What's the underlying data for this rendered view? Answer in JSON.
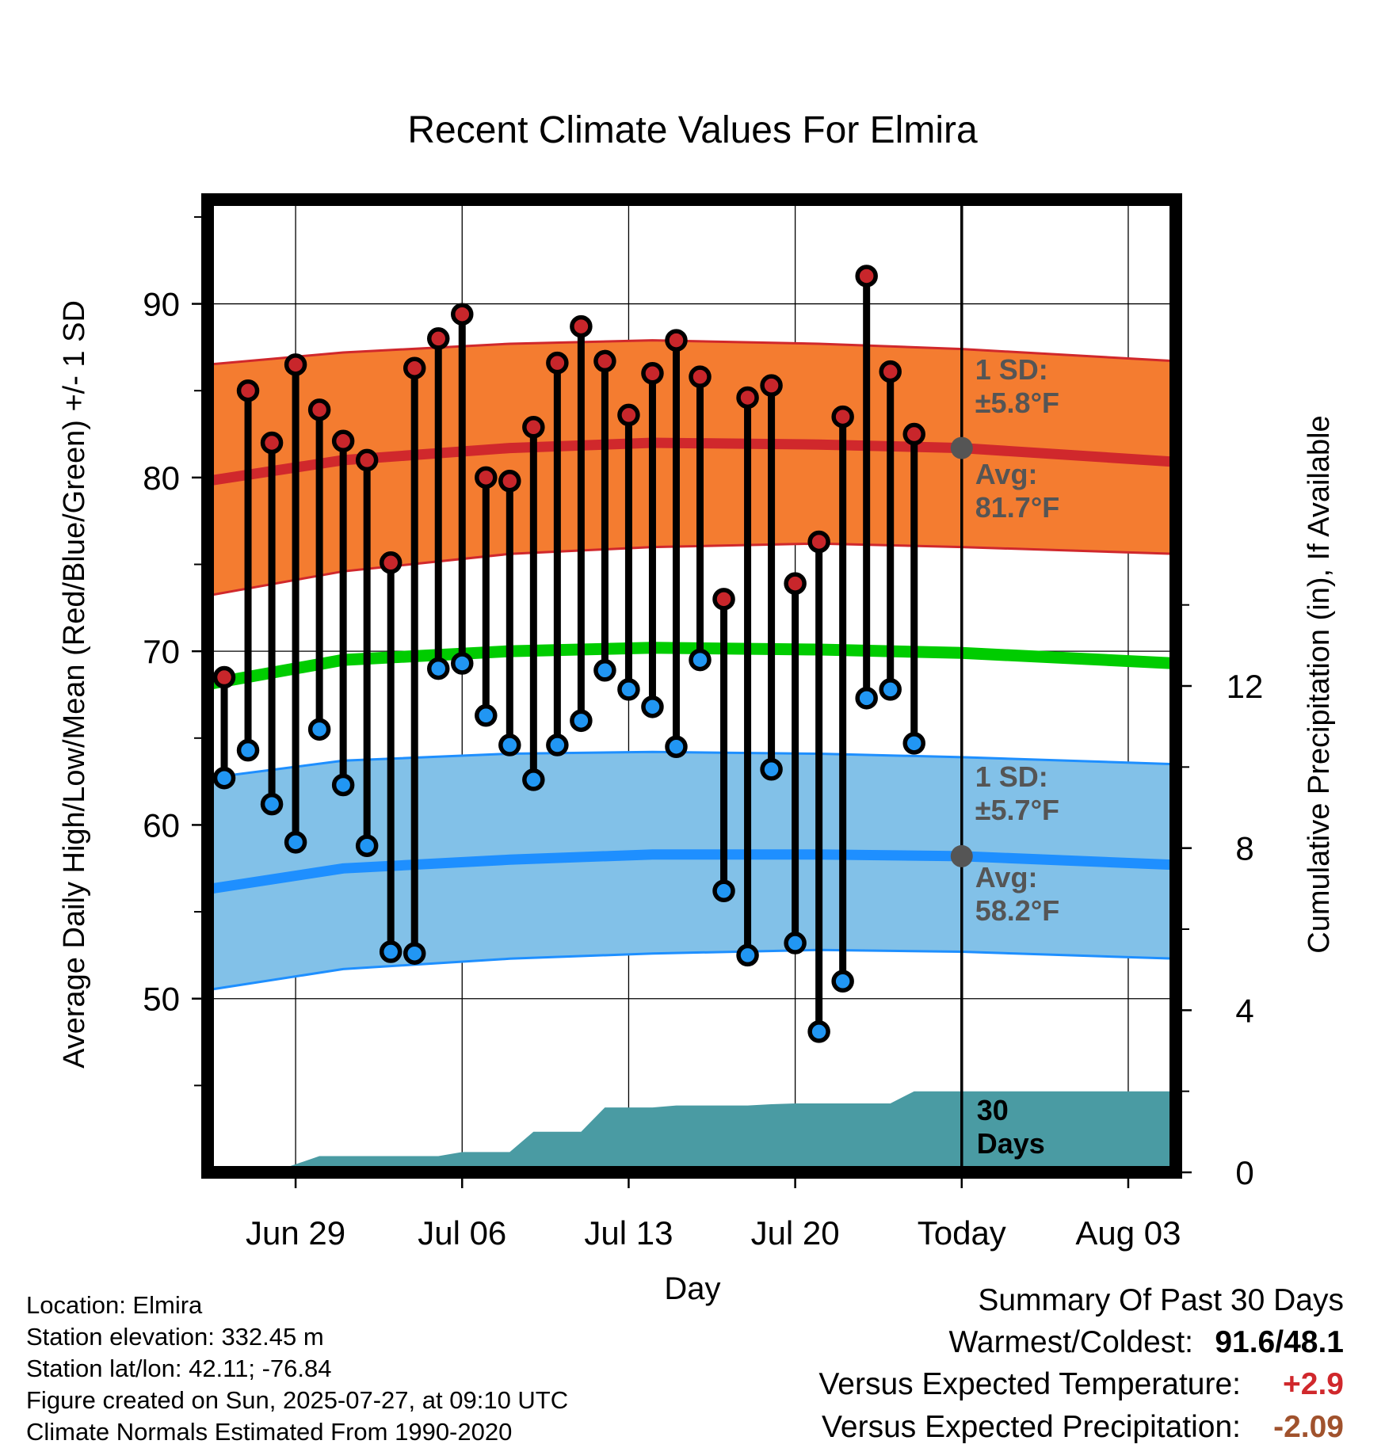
{
  "chart_data": {
    "type": "line",
    "title": "Recent Climate Values For Elmira",
    "xlabel": "Day",
    "ylabel": "Average Daily High/Low/Mean (Red/Blue/Green) +/- 1 SD",
    "y2label": "Cumulative Precipitation (in), If Available",
    "ylim": [
      40,
      96
    ],
    "y2lim": [
      0,
      24
    ],
    "x_tick_labels": [
      "Jun 29",
      "Jul 06",
      "Jul 13",
      "Jul 20",
      "Today",
      "Aug 03"
    ],
    "x_tick_days": [
      3,
      10,
      17,
      24,
      31,
      38
    ],
    "y_ticks": [
      50,
      60,
      70,
      80,
      90
    ],
    "y2_ticks": [
      0,
      4,
      8,
      12
    ],
    "grid": true,
    "xlim_days": [
      -0.7,
      40.0
    ],
    "highs": [
      68.5,
      85.0,
      82.0,
      86.5,
      83.9,
      82.1,
      81.0,
      75.1,
      86.3,
      88.0,
      89.4,
      80.0,
      79.8,
      82.9,
      86.6,
      88.7,
      86.7,
      83.6,
      86.0,
      87.9,
      85.8,
      73.0,
      84.6,
      85.3,
      73.9,
      76.3,
      83.5,
      91.6,
      86.1,
      82.5
    ],
    "lows": [
      62.7,
      64.3,
      61.2,
      59.0,
      65.5,
      62.3,
      58.8,
      52.7,
      52.6,
      69.0,
      69.3,
      66.3,
      64.6,
      62.6,
      64.6,
      66.0,
      68.9,
      67.8,
      66.8,
      64.5,
      69.5,
      56.2,
      52.5,
      63.2,
      53.2,
      48.1,
      51.0,
      67.3,
      67.8,
      64.7
    ],
    "precip_cumulative": [
      0,
      0,
      0,
      0.2,
      0.4,
      0.4,
      0.4,
      0.4,
      0.4,
      0.4,
      0.5,
      0.5,
      0.5,
      1.0,
      1.0,
      1.0,
      1.6,
      1.6,
      1.6,
      1.65,
      1.65,
      1.65,
      1.65,
      1.68,
      1.7,
      1.7,
      1.7,
      1.7,
      1.7,
      2.0,
      2.0,
      2.0,
      2.0,
      2.0,
      2.0,
      2.0,
      2.0,
      2.0,
      2.0,
      2.0
    ],
    "series": [
      {
        "name": "High",
        "normal_days": [
          -0.7,
          5,
          12,
          18,
          25,
          31,
          40
        ],
        "avg": [
          79.8,
          81.0,
          81.7,
          82.0,
          81.9,
          81.7,
          80.9
        ],
        "upper": [
          86.5,
          87.2,
          87.7,
          87.9,
          87.7,
          87.4,
          86.7
        ],
        "lower": [
          73.2,
          74.6,
          75.6,
          76.0,
          76.2,
          76.0,
          75.6
        ]
      },
      {
        "name": "Mean",
        "normal_days": [
          -0.7,
          5,
          12,
          18,
          25,
          31,
          40
        ],
        "avg": [
          68.1,
          69.5,
          70.0,
          70.2,
          70.1,
          69.9,
          69.3
        ]
      },
      {
        "name": "Low",
        "normal_days": [
          -0.7,
          5,
          12,
          18,
          25,
          31,
          40
        ],
        "avg": [
          56.3,
          57.5,
          58.0,
          58.3,
          58.3,
          58.2,
          57.7
        ],
        "upper": [
          62.7,
          63.7,
          64.1,
          64.2,
          64.1,
          63.9,
          63.5
        ],
        "lower": [
          50.5,
          51.7,
          52.3,
          52.6,
          52.8,
          52.7,
          52.3
        ]
      }
    ],
    "annotations": {
      "high_sd": {
        "line1": "1 SD:",
        "line2": "±5.8°F"
      },
      "high_avg": {
        "line1": "Avg:",
        "line2": "81.7°F",
        "value": 81.7
      },
      "low_sd": {
        "line1": "1 SD:",
        "line2": "±5.7°F"
      },
      "low_avg": {
        "line1": "Avg:",
        "line2": "58.2°F",
        "value": 58.2
      },
      "period": {
        "line1": "30",
        "line2": "Days"
      }
    },
    "colors": {
      "high_band": "#f47c30",
      "high_line": "#d0282c",
      "low_band": "#82c1e8",
      "low_line": "#1e8fff",
      "mean_line": "#00cc00",
      "precip": "#4a9ba3",
      "high_dot": "#c8262b",
      "low_dot": "#2196f3",
      "annotation": "#555555"
    }
  },
  "station": {
    "location": "Location: Elmira",
    "elevation": "Station elevation: 332.45 m",
    "latlon": "Station lat/lon: 42.11; -76.84",
    "created": "Figure created on Sun, 2025-07-27, at 09:10 UTC",
    "normals": "Climate Normals Estimated From 1990-2020"
  },
  "summary": {
    "title": "Summary Of Past 30 Days",
    "warmest_label": "Warmest/Coldest:",
    "warmest_value": "91.6/48.1",
    "temp_label": "Versus Expected Temperature:",
    "temp_value": "+2.9",
    "temp_color": "#d0282c",
    "precip_label": "Versus Expected Precipitation:",
    "precip_value": "-2.09",
    "precip_color": "#a0522d"
  }
}
